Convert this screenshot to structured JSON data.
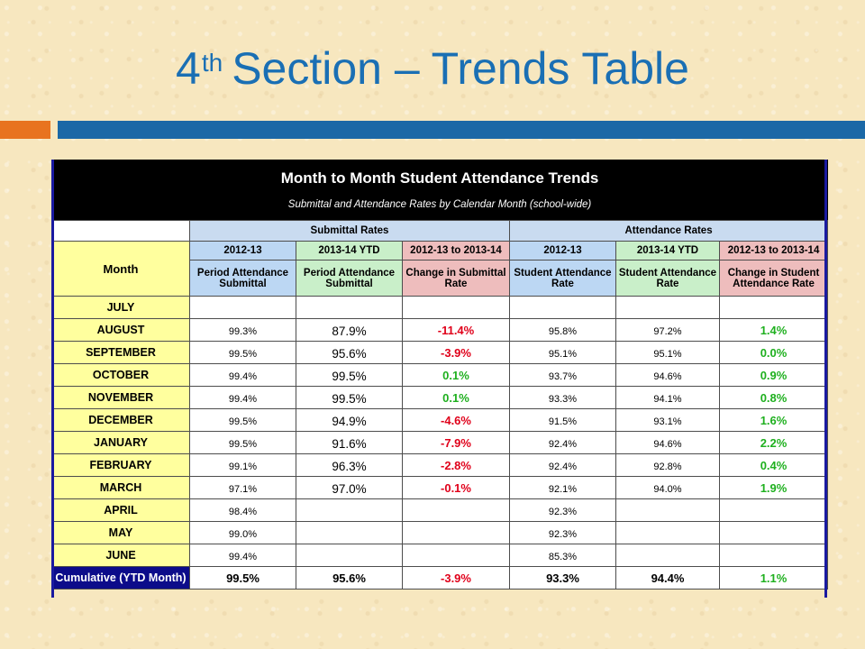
{
  "slide": {
    "title_main": "4",
    "title_sup": "th",
    "title_rest": "Section – Trends Table"
  },
  "table": {
    "title": "Month to Month Student Attendance Trends",
    "subtitle": "Submittal and Attendance Rates by Calendar Month (school-wide)",
    "group_submittal": "Submittal Rates",
    "group_attendance": "Attendance Rates",
    "month_header": "Month",
    "col_year1": "2012-13",
    "col_year2": "2013-14 YTD",
    "col_change": "2012-13 to 2013-14",
    "sub_period_1": "Period Attendance",
    "sub_period_2": "Submittal",
    "sub_change_sub_1": "Change in Submittal",
    "sub_change_sub_2": "Rate",
    "sub_student_1": "Student Attendance",
    "sub_student_2": "Rate",
    "sub_change_att_1": "Change in Student",
    "sub_change_att_2": "Attendance Rate",
    "rows": [
      {
        "month": "JULY",
        "sub_1213": "",
        "sub_1314": "",
        "sub_change": "",
        "att_1213": "",
        "att_1314": "",
        "att_change": ""
      },
      {
        "month": "AUGUST",
        "sub_1213": "99.3%",
        "sub_1314": "87.9%",
        "sub_change": "-11.4%",
        "att_1213": "95.8%",
        "att_1314": "97.2%",
        "att_change": "1.4%"
      },
      {
        "month": "SEPTEMBER",
        "sub_1213": "99.5%",
        "sub_1314": "95.6%",
        "sub_change": "-3.9%",
        "att_1213": "95.1%",
        "att_1314": "95.1%",
        "att_change": "0.0%"
      },
      {
        "month": "OCTOBER",
        "sub_1213": "99.4%",
        "sub_1314": "99.5%",
        "sub_change": "0.1%",
        "att_1213": "93.7%",
        "att_1314": "94.6%",
        "att_change": "0.9%"
      },
      {
        "month": "NOVEMBER",
        "sub_1213": "99.4%",
        "sub_1314": "99.5%",
        "sub_change": "0.1%",
        "att_1213": "93.3%",
        "att_1314": "94.1%",
        "att_change": "0.8%"
      },
      {
        "month": "DECEMBER",
        "sub_1213": "99.5%",
        "sub_1314": "94.9%",
        "sub_change": "-4.6%",
        "att_1213": "91.5%",
        "att_1314": "93.1%",
        "att_change": "1.6%"
      },
      {
        "month": "JANUARY",
        "sub_1213": "99.5%",
        "sub_1314": "91.6%",
        "sub_change": "-7.9%",
        "att_1213": "92.4%",
        "att_1314": "94.6%",
        "att_change": "2.2%"
      },
      {
        "month": "FEBRUARY",
        "sub_1213": "99.1%",
        "sub_1314": "96.3%",
        "sub_change": "-2.8%",
        "att_1213": "92.4%",
        "att_1314": "92.8%",
        "att_change": "0.4%"
      },
      {
        "month": "MARCH",
        "sub_1213": "97.1%",
        "sub_1314": "97.0%",
        "sub_change": "-0.1%",
        "att_1213": "92.1%",
        "att_1314": "94.0%",
        "att_change": "1.9%"
      },
      {
        "month": "APRIL",
        "sub_1213": "98.4%",
        "sub_1314": "",
        "sub_change": "",
        "att_1213": "92.3%",
        "att_1314": "",
        "att_change": ""
      },
      {
        "month": "MAY",
        "sub_1213": "99.0%",
        "sub_1314": "",
        "sub_change": "",
        "att_1213": "92.3%",
        "att_1314": "",
        "att_change": ""
      },
      {
        "month": "JUNE",
        "sub_1213": "99.4%",
        "sub_1314": "",
        "sub_change": "",
        "att_1213": "85.3%",
        "att_1314": "",
        "att_change": ""
      }
    ],
    "cumulative": {
      "label": "Cumulative (YTD Month)",
      "sub_1213": "99.5%",
      "sub_1314": "95.6%",
      "sub_change": "-3.9%",
      "att_1213": "93.3%",
      "att_1314": "94.4%",
      "att_change": "1.1%"
    }
  },
  "colors": {
    "title_blue": "#1a6fb4",
    "accent_orange": "#e8731f",
    "accent_blue": "#1b68a6",
    "negative_red": "#e0001a",
    "positive_green": "#1fb01f",
    "cumulative_navy": "#0c0c8a"
  }
}
